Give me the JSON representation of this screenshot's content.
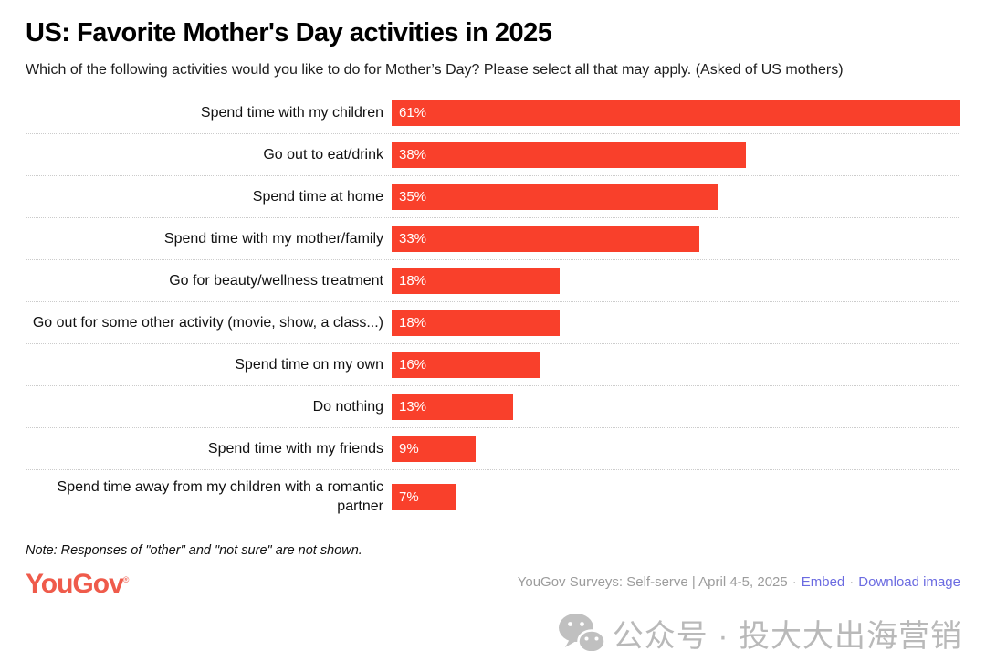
{
  "chart_data": {
    "type": "bar",
    "orientation": "horizontal",
    "title": "US: Favorite Mother's Day activities in 2025",
    "subtitle": "Which of the following activities would you like to do for Mother’s Day? Please select all that may apply. (Asked of US mothers)",
    "categories": [
      "Spend time with my children",
      "Go out to eat/drink",
      "Spend time at home",
      "Spend time with my mother/family",
      "Go for beauty/wellness treatment",
      "Go out for some other activity (movie, show, a class...)",
      "Spend time on my own",
      "Do nothing",
      "Spend time with my friends",
      "Spend time away from my children with a romantic partner"
    ],
    "values": [
      61,
      38,
      35,
      33,
      18,
      18,
      16,
      13,
      9,
      7
    ],
    "value_labels": [
      "61%",
      "38%",
      "35%",
      "33%",
      "18%",
      "18%",
      "16%",
      "13%",
      "9%",
      "7%"
    ],
    "xlim": [
      0,
      61
    ],
    "bar_color": "#F9402B",
    "value_label_color": "#ffffff",
    "grid": "dotted-row-separators",
    "note": "Note: Responses of \"other\" and \"not sure\" are not shown."
  },
  "footer": {
    "logo_text": "YouGov",
    "registered_mark": "®",
    "logo_color": "#EF5B4B",
    "source_text": "YouGov Surveys: Self-serve | April 4-5, 2025",
    "separator": "·",
    "embed_label": "Embed",
    "download_label": "Download image",
    "link_color": "#6B6BE1"
  },
  "watermark": {
    "icon": "wechat-icon",
    "text": "公众号 · 投大大出海营销",
    "color": "#8f8f8f"
  }
}
